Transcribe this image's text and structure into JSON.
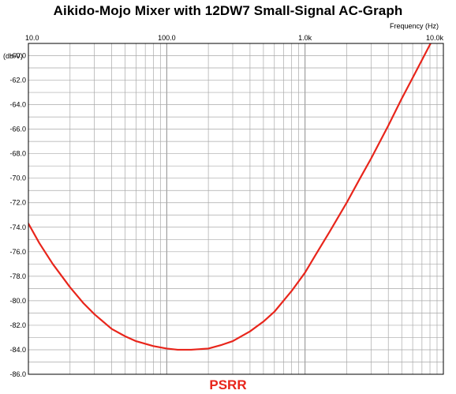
{
  "chart_data": {
    "type": "line",
    "title": "Aikido-Mojo Mixer with 12DW7 Small-Signal AC-Graph",
    "xlabel": "Frequency  (Hz)",
    "ylabel": "(db-V)",
    "x_scale": "log",
    "xlim": [
      10,
      10000
    ],
    "ylim": [
      -86.0,
      -59.0
    ],
    "x_ticks": [
      "10.0",
      "100.0",
      "1.0k",
      "10.0k"
    ],
    "y_ticks": [
      "-60.0",
      "-62.0",
      "-64.0",
      "-66.0",
      "-68.0",
      "-70.0",
      "-72.0",
      "-74.0",
      "-76.0",
      "-78.0",
      "-80.0",
      "-82.0",
      "-84.0",
      "-86.0"
    ],
    "grid": true,
    "colors": {
      "series": "#e8251b",
      "grid": "#a9a9a9",
      "axis": "#000000"
    },
    "series": [
      {
        "name": "PSRR",
        "x": [
          10,
          12,
          15,
          20,
          25,
          30,
          40,
          50,
          60,
          80,
          100,
          120,
          150,
          200,
          250,
          300,
          400,
          500,
          600,
          800,
          1000,
          1200,
          1500,
          2000,
          2500,
          3000,
          4000,
          5000,
          6000,
          8000,
          10000
        ],
        "y": [
          -73.7,
          -75.3,
          -77.0,
          -78.9,
          -80.2,
          -81.1,
          -82.3,
          -82.9,
          -83.3,
          -83.7,
          -83.9,
          -84.0,
          -84.0,
          -83.9,
          -83.6,
          -83.3,
          -82.5,
          -81.7,
          -80.9,
          -79.2,
          -77.7,
          -76.2,
          -74.4,
          -72.0,
          -70.0,
          -68.4,
          -65.7,
          -63.5,
          -61.8,
          -59.1,
          -57.0
        ]
      }
    ]
  }
}
